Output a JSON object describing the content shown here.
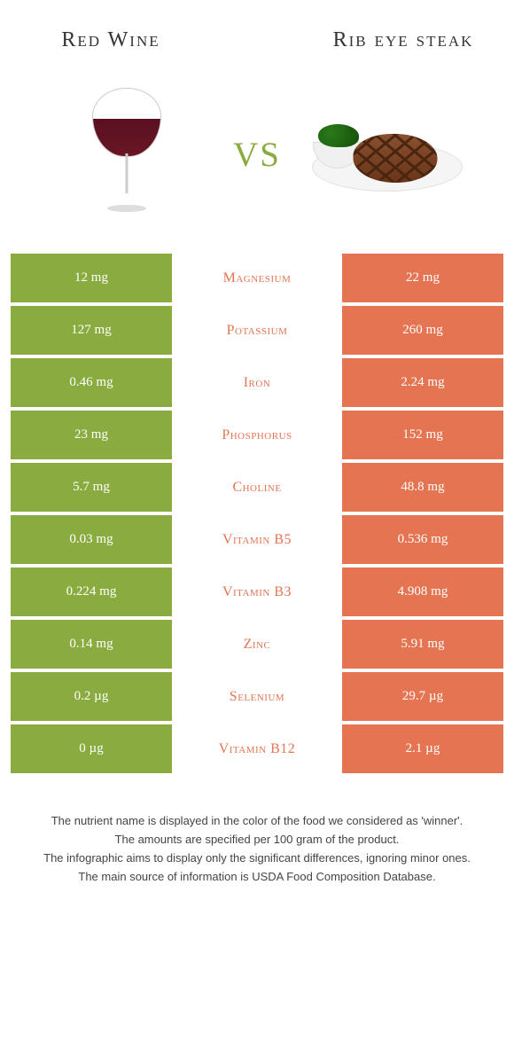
{
  "colors": {
    "green": "#8aab3f",
    "orange": "#e47452",
    "nutrient_text": "#e47452",
    "white": "#ffffff"
  },
  "header": {
    "left_title": "Red Wine",
    "right_title": "Rib eye steak",
    "vs": "vs"
  },
  "rows": [
    {
      "nutrient": "Magnesium",
      "left": "12 mg",
      "right": "22 mg",
      "winner": "right"
    },
    {
      "nutrient": "Potassium",
      "left": "127 mg",
      "right": "260 mg",
      "winner": "right"
    },
    {
      "nutrient": "Iron",
      "left": "0.46 mg",
      "right": "2.24 mg",
      "winner": "right"
    },
    {
      "nutrient": "Phosphorus",
      "left": "23 mg",
      "right": "152 mg",
      "winner": "right"
    },
    {
      "nutrient": "Choline",
      "left": "5.7 mg",
      "right": "48.8 mg",
      "winner": "right"
    },
    {
      "nutrient": "Vitamin B5",
      "left": "0.03 mg",
      "right": "0.536 mg",
      "winner": "right"
    },
    {
      "nutrient": "Vitamin B3",
      "left": "0.224 mg",
      "right": "4.908 mg",
      "winner": "right"
    },
    {
      "nutrient": "Zinc",
      "left": "0.14 mg",
      "right": "5.91 mg",
      "winner": "right"
    },
    {
      "nutrient": "Selenium",
      "left": "0.2 µg",
      "right": "29.7 µg",
      "winner": "right"
    },
    {
      "nutrient": "Vitamin B12",
      "left": "0 µg",
      "right": "2.1 µg",
      "winner": "right"
    }
  ],
  "footer": {
    "line1": "The nutrient name is displayed in the color of the food we considered as 'winner'.",
    "line2": "The amounts are specified per 100 gram of the product.",
    "line3": "The infographic aims to display only the significant differences, ignoring minor ones.",
    "line4": "The main source of information is USDA Food Composition Database."
  }
}
